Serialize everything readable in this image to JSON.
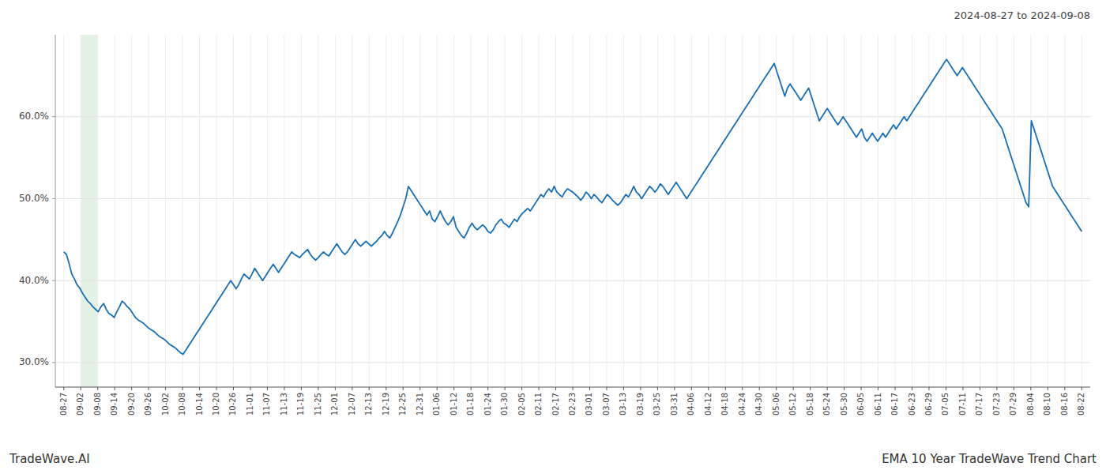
{
  "chart_data": {
    "type": "line",
    "title": "2024-08-27 to 2024-09-08",
    "annotations": [
      "TradeWave.AI",
      "EMA 10 Year TradeWave Trend Chart"
    ],
    "color": "#1a6fb5",
    "grid": true,
    "span": {
      "x": [
        1,
        2
      ],
      "color": "#c8e6c9"
    },
    "xlim": [
      -0.5,
      60.5
    ],
    "ylim": [
      27,
      70
    ],
    "yticks": [
      {
        "value": 30.0,
        "label": "30.0%"
      },
      {
        "value": 40.0,
        "label": "40.0%"
      },
      {
        "value": 50.0,
        "label": "50.0%"
      },
      {
        "value": 60.0,
        "label": "60.0%"
      }
    ],
    "xticks": [
      {
        "value": 0,
        "label": "08-27"
      },
      {
        "value": 1,
        "label": "09-02"
      },
      {
        "value": 2,
        "label": "09-08"
      },
      {
        "value": 3,
        "label": "09-14"
      },
      {
        "value": 4,
        "label": "09-20"
      },
      {
        "value": 5,
        "label": "09-26"
      },
      {
        "value": 6,
        "label": "10-02"
      },
      {
        "value": 7,
        "label": "10-08"
      },
      {
        "value": 8,
        "label": "10-14"
      },
      {
        "value": 9,
        "label": "10-20"
      },
      {
        "value": 10,
        "label": "10-26"
      },
      {
        "value": 11,
        "label": "11-01"
      },
      {
        "value": 12,
        "label": "11-07"
      },
      {
        "value": 13,
        "label": "11-13"
      },
      {
        "value": 14,
        "label": "11-19"
      },
      {
        "value": 15,
        "label": "11-25"
      },
      {
        "value": 16,
        "label": "12-01"
      },
      {
        "value": 17,
        "label": "12-07"
      },
      {
        "value": 18,
        "label": "12-13"
      },
      {
        "value": 19,
        "label": "12-19"
      },
      {
        "value": 20,
        "label": "12-25"
      },
      {
        "value": 21,
        "label": "12-31"
      },
      {
        "value": 22,
        "label": "01-06"
      },
      {
        "value": 23,
        "label": "01-12"
      },
      {
        "value": 24,
        "label": "01-18"
      },
      {
        "value": 25,
        "label": "01-24"
      },
      {
        "value": 26,
        "label": "01-30"
      },
      {
        "value": 27,
        "label": "02-05"
      },
      {
        "value": 28,
        "label": "02-11"
      },
      {
        "value": 29,
        "label": "02-17"
      },
      {
        "value": 30,
        "label": "02-23"
      },
      {
        "value": 31,
        "label": "03-01"
      },
      {
        "value": 32,
        "label": "03-07"
      },
      {
        "value": 33,
        "label": "03-13"
      },
      {
        "value": 34,
        "label": "03-19"
      },
      {
        "value": 35,
        "label": "03-25"
      },
      {
        "value": 36,
        "label": "03-31"
      },
      {
        "value": 37,
        "label": "04-06"
      },
      {
        "value": 38,
        "label": "04-12"
      },
      {
        "value": 39,
        "label": "04-18"
      },
      {
        "value": 40,
        "label": "04-24"
      },
      {
        "value": 41,
        "label": "04-30"
      },
      {
        "value": 42,
        "label": "05-06"
      },
      {
        "value": 43,
        "label": "05-12"
      },
      {
        "value": 44,
        "label": "05-18"
      },
      {
        "value": 45,
        "label": "05-24"
      },
      {
        "value": 46,
        "label": "05-30"
      },
      {
        "value": 47,
        "label": "06-05"
      },
      {
        "value": 48,
        "label": "06-11"
      },
      {
        "value": 49,
        "label": "06-17"
      },
      {
        "value": 50,
        "label": "06-23"
      },
      {
        "value": 51,
        "label": "06-29"
      },
      {
        "value": 52,
        "label": "07-05"
      },
      {
        "value": 53,
        "label": "07-11"
      },
      {
        "value": 54,
        "label": "07-17"
      },
      {
        "value": 55,
        "label": "07-23"
      },
      {
        "value": 56,
        "label": "07-29"
      },
      {
        "value": 57,
        "label": "08-04"
      },
      {
        "value": 58,
        "label": "08-10"
      },
      {
        "value": 59,
        "label": "08-16"
      },
      {
        "value": 60,
        "label": "08-22"
      }
    ],
    "x": [
      0,
      0.15625,
      0.3125,
      0.46875,
      0.625,
      0.78125,
      0.9375,
      1.09375,
      1.25,
      1.40625,
      1.5625,
      1.71875,
      1.875,
      2.03125,
      2.1875,
      2.34375,
      2.5,
      2.65625,
      2.8125,
      2.96875,
      3.125,
      3.28125,
      3.4375,
      3.59375,
      3.75,
      3.90625,
      4.0625,
      4.21875,
      4.375,
      4.53125,
      4.6875,
      4.84375,
      5,
      5.15625,
      5.3125,
      5.46875,
      5.625,
      5.78125,
      5.9375,
      6.09375,
      6.25,
      6.40625,
      6.5625,
      6.71875,
      6.875,
      7.03125,
      7.1875,
      7.34375,
      7.5,
      7.65625,
      7.8125,
      7.96875,
      8.125,
      8.28125,
      8.4375,
      8.59375,
      8.75,
      8.90625,
      9.0625,
      9.21875,
      9.375,
      9.53125,
      9.6875,
      9.84375,
      10,
      10.15625,
      10.3125,
      10.46875,
      10.625,
      10.78125,
      10.9375,
      11.09375,
      11.25,
      11.40625,
      11.5625,
      11.71875,
      11.875,
      12.03125,
      12.1875,
      12.34375,
      12.5,
      12.65625,
      12.8125,
      12.96875,
      13.125,
      13.28125,
      13.4375,
      13.59375,
      13.75,
      13.90625,
      14.0625,
      14.21875,
      14.375,
      14.53125,
      14.6875,
      14.84375,
      15,
      15.15625,
      15.3125,
      15.46875,
      15.625,
      15.78125,
      15.9375,
      16.09375,
      16.25,
      16.40625,
      16.5625,
      16.71875,
      16.875,
      17.03125,
      17.1875,
      17.34375,
      17.5,
      17.65625,
      17.8125,
      17.96875,
      18.125,
      18.28125,
      18.4375,
      18.59375,
      18.75,
      18.90625,
      19.0625,
      19.21875,
      19.375,
      19.53125,
      19.6875,
      19.84375,
      20,
      20.15625,
      20.3125,
      20.46875,
      20.625,
      20.78125,
      20.9375,
      21.09375,
      21.25,
      21.40625,
      21.5625,
      21.71875,
      21.875,
      22.03125,
      22.1875,
      22.34375,
      22.5,
      22.65625,
      22.8125,
      22.96875,
      23.125,
      23.28125,
      23.4375,
      23.59375,
      23.75,
      23.90625,
      24.0625,
      24.21875,
      24.375,
      24.53125,
      24.6875,
      24.84375,
      25,
      25.15625,
      25.3125,
      25.46875,
      25.625,
      25.78125,
      25.9375,
      26.09375,
      26.25,
      26.40625,
      26.5625,
      26.71875,
      26.875,
      27.03125,
      27.1875,
      27.34375,
      27.5,
      27.65625,
      27.8125,
      27.96875,
      28.125,
      28.28125,
      28.4375,
      28.59375,
      28.75,
      28.90625,
      29.0625,
      29.21875,
      29.375,
      29.53125,
      29.6875,
      29.84375,
      30,
      30.15625,
      30.3125,
      30.46875,
      30.625,
      30.78125,
      30.9375,
      31.09375,
      31.25,
      31.40625,
      31.5625,
      31.71875,
      31.875,
      32.03125,
      32.1875,
      32.34375,
      32.5,
      32.65625,
      32.8125,
      32.96875,
      33.125,
      33.28125,
      33.4375,
      33.59375,
      33.75,
      33.90625,
      34.0625,
      34.21875,
      34.375,
      34.53125,
      34.6875,
      34.84375,
      35,
      35.15625,
      35.3125,
      35.46875,
      35.625,
      35.78125,
      35.9375,
      36.09375,
      36.25,
      36.40625,
      36.5625,
      36.71875,
      36.875,
      37.03125,
      37.1875,
      37.34375,
      37.5,
      37.65625,
      37.8125,
      37.96875,
      38.125,
      38.28125,
      38.4375,
      38.59375,
      38.75,
      38.90625,
      39.0625,
      39.21875,
      39.375,
      39.53125,
      39.6875,
      39.84375,
      40,
      40.15625,
      40.3125,
      40.46875,
      40.625,
      40.78125,
      40.9375,
      41.09375,
      41.25,
      41.40625,
      41.5625,
      41.71875,
      41.875,
      42.03125,
      42.1875,
      42.34375,
      42.5,
      42.65625,
      42.8125,
      42.96875,
      43.125,
      43.28125,
      43.4375,
      43.59375,
      43.75,
      43.90625,
      44.0625,
      44.21875,
      44.375,
      44.53125,
      44.6875,
      44.84375,
      45,
      45.15625,
      45.3125,
      45.46875,
      45.625,
      45.78125,
      45.9375,
      46.09375,
      46.25,
      46.40625,
      46.5625,
      46.71875,
      46.875,
      47.03125,
      47.1875,
      47.34375,
      47.5,
      47.65625,
      47.8125,
      47.96875,
      48.125,
      48.28125,
      48.4375,
      48.59375,
      48.75,
      48.90625,
      49.0625,
      49.21875,
      49.375,
      49.53125,
      49.6875,
      49.84375,
      50,
      50.15625,
      50.3125,
      50.46875,
      50.625,
      50.78125,
      50.9375,
      51.09375,
      51.25,
      51.40625,
      51.5625,
      51.71875,
      51.875,
      52.03125,
      52.1875,
      52.34375,
      52.5,
      52.65625,
      52.8125,
      52.96875,
      53.125,
      53.28125,
      53.4375,
      53.59375,
      53.75,
      53.90625,
      54.0625,
      54.21875,
      54.375,
      54.53125,
      54.6875,
      54.84375,
      55,
      55.15625,
      55.3125,
      55.46875,
      55.625,
      55.78125,
      55.9375,
      56.09375,
      56.25,
      56.40625,
      56.5625,
      56.71875,
      56.875,
      57.03125,
      57.1875,
      57.34375,
      57.5,
      57.65625,
      57.8125,
      57.96875,
      58.125,
      58.28125,
      58.4375,
      58.59375,
      58.75,
      58.90625,
      59.0625,
      59.21875,
      59.375,
      59.53125,
      59.6875,
      59.84375,
      60
    ],
    "values": [
      43.5,
      43.2,
      42.1,
      40.8,
      40.2,
      39.5,
      39.1,
      38.5,
      38.0,
      37.5,
      37.2,
      36.8,
      36.5,
      36.2,
      36.8,
      37.2,
      36.5,
      36.0,
      35.8,
      35.5,
      36.2,
      36.8,
      37.5,
      37.2,
      36.8,
      36.5,
      36.0,
      35.5,
      35.2,
      35.0,
      34.8,
      34.5,
      34.2,
      34.0,
      33.8,
      33.5,
      33.2,
      33.0,
      32.8,
      32.5,
      32.2,
      32.0,
      31.8,
      31.5,
      31.2,
      31.0,
      31.5,
      32.0,
      32.5,
      33.0,
      33.5,
      34.0,
      34.5,
      35.0,
      35.5,
      36.0,
      36.5,
      37.0,
      37.5,
      38.0,
      38.5,
      39.0,
      39.5,
      40.0,
      39.5,
      39.0,
      39.5,
      40.2,
      40.8,
      40.5,
      40.2,
      40.8,
      41.5,
      41.0,
      40.5,
      40.0,
      40.5,
      41.0,
      41.5,
      42.0,
      41.5,
      41.0,
      41.5,
      42.0,
      42.5,
      43.0,
      43.5,
      43.2,
      43.0,
      42.8,
      43.2,
      43.5,
      43.8,
      43.2,
      42.8,
      42.5,
      42.8,
      43.2,
      43.5,
      43.2,
      43.0,
      43.5,
      44.0,
      44.5,
      44.0,
      43.5,
      43.2,
      43.5,
      44.0,
      44.5,
      45.0,
      44.5,
      44.2,
      44.5,
      44.8,
      44.5,
      44.2,
      44.5,
      44.8,
      45.2,
      45.5,
      46.0,
      45.5,
      45.2,
      45.8,
      46.5,
      47.2,
      48.0,
      49.0,
      50.0,
      51.5,
      51.0,
      50.5,
      50.0,
      49.5,
      49.0,
      48.5,
      48.0,
      48.5,
      47.5,
      47.2,
      47.8,
      48.5,
      47.8,
      47.2,
      46.8,
      47.2,
      47.8,
      46.5,
      46.0,
      45.5,
      45.2,
      45.8,
      46.5,
      47.0,
      46.5,
      46.2,
      46.5,
      46.8,
      46.5,
      46.0,
      45.8,
      46.2,
      46.8,
      47.2,
      47.5,
      47.0,
      46.8,
      46.5,
      47.0,
      47.5,
      47.2,
      47.8,
      48.2,
      48.5,
      48.8,
      48.5,
      49.0,
      49.5,
      50.0,
      50.5,
      50.2,
      50.8,
      51.2,
      50.8,
      51.5,
      50.8,
      50.5,
      50.2,
      50.8,
      51.2,
      51.0,
      50.8,
      50.5,
      50.2,
      49.8,
      50.2,
      50.8,
      50.5,
      50.0,
      50.5,
      50.2,
      49.8,
      49.5,
      50.0,
      50.5,
      50.2,
      49.8,
      49.5,
      49.2,
      49.5,
      50.0,
      50.5,
      50.2,
      50.8,
      51.5,
      50.8,
      50.5,
      50.0,
      50.5,
      51.0,
      51.5,
      51.2,
      50.8,
      51.2,
      51.8,
      51.5,
      51.0,
      50.5,
      51.0,
      51.5,
      52.0,
      51.5,
      51.0,
      50.5,
      50.0,
      50.5,
      51.0,
      51.5,
      52.0,
      52.5,
      53.0,
      53.5,
      54.0,
      54.5,
      55.0,
      55.5,
      56.0,
      56.5,
      57.0,
      57.5,
      58.0,
      58.5,
      59.0,
      59.5,
      60.0,
      60.5,
      61.0,
      61.5,
      62.0,
      62.5,
      63.0,
      63.5,
      64.0,
      64.5,
      65.0,
      65.5,
      66.0,
      66.5,
      65.5,
      64.5,
      63.5,
      62.5,
      63.5,
      64.0,
      63.5,
      63.0,
      62.5,
      62.0,
      62.5,
      63.0,
      63.5,
      62.5,
      61.5,
      60.5,
      59.5,
      60.0,
      60.5,
      61.0,
      60.5,
      60.0,
      59.5,
      59.0,
      59.5,
      60.0,
      59.5,
      59.0,
      58.5,
      58.0,
      57.5,
      58.0,
      58.5,
      57.5,
      57.0,
      57.5,
      58.0,
      57.5,
      57.0,
      57.5,
      58.0,
      57.5,
      58.0,
      58.5,
      59.0,
      58.5,
      59.0,
      59.5,
      60.0,
      59.5,
      60.0,
      60.5,
      61.0,
      61.5,
      62.0,
      62.5,
      63.0,
      63.5,
      64.0,
      64.5,
      65.0,
      65.5,
      66.0,
      66.5,
      67.0,
      66.5,
      66.0,
      65.5,
      65.0,
      65.5,
      66.0,
      65.5,
      65.0,
      64.5,
      64.0,
      63.5,
      63.0,
      62.5,
      62.0,
      61.5,
      61.0,
      60.5,
      60.0,
      59.5,
      59.0,
      58.5,
      57.5,
      56.5,
      55.5,
      54.5,
      53.5,
      52.5,
      51.5,
      50.5,
      49.5,
      49.0,
      59.5,
      58.5,
      57.5,
      56.5,
      55.5,
      54.5,
      53.5,
      52.5,
      51.5,
      51.0,
      50.5,
      50.0,
      49.5,
      49.0,
      48.5,
      48.0,
      47.5,
      47.0,
      46.5,
      46.0
    ]
  }
}
